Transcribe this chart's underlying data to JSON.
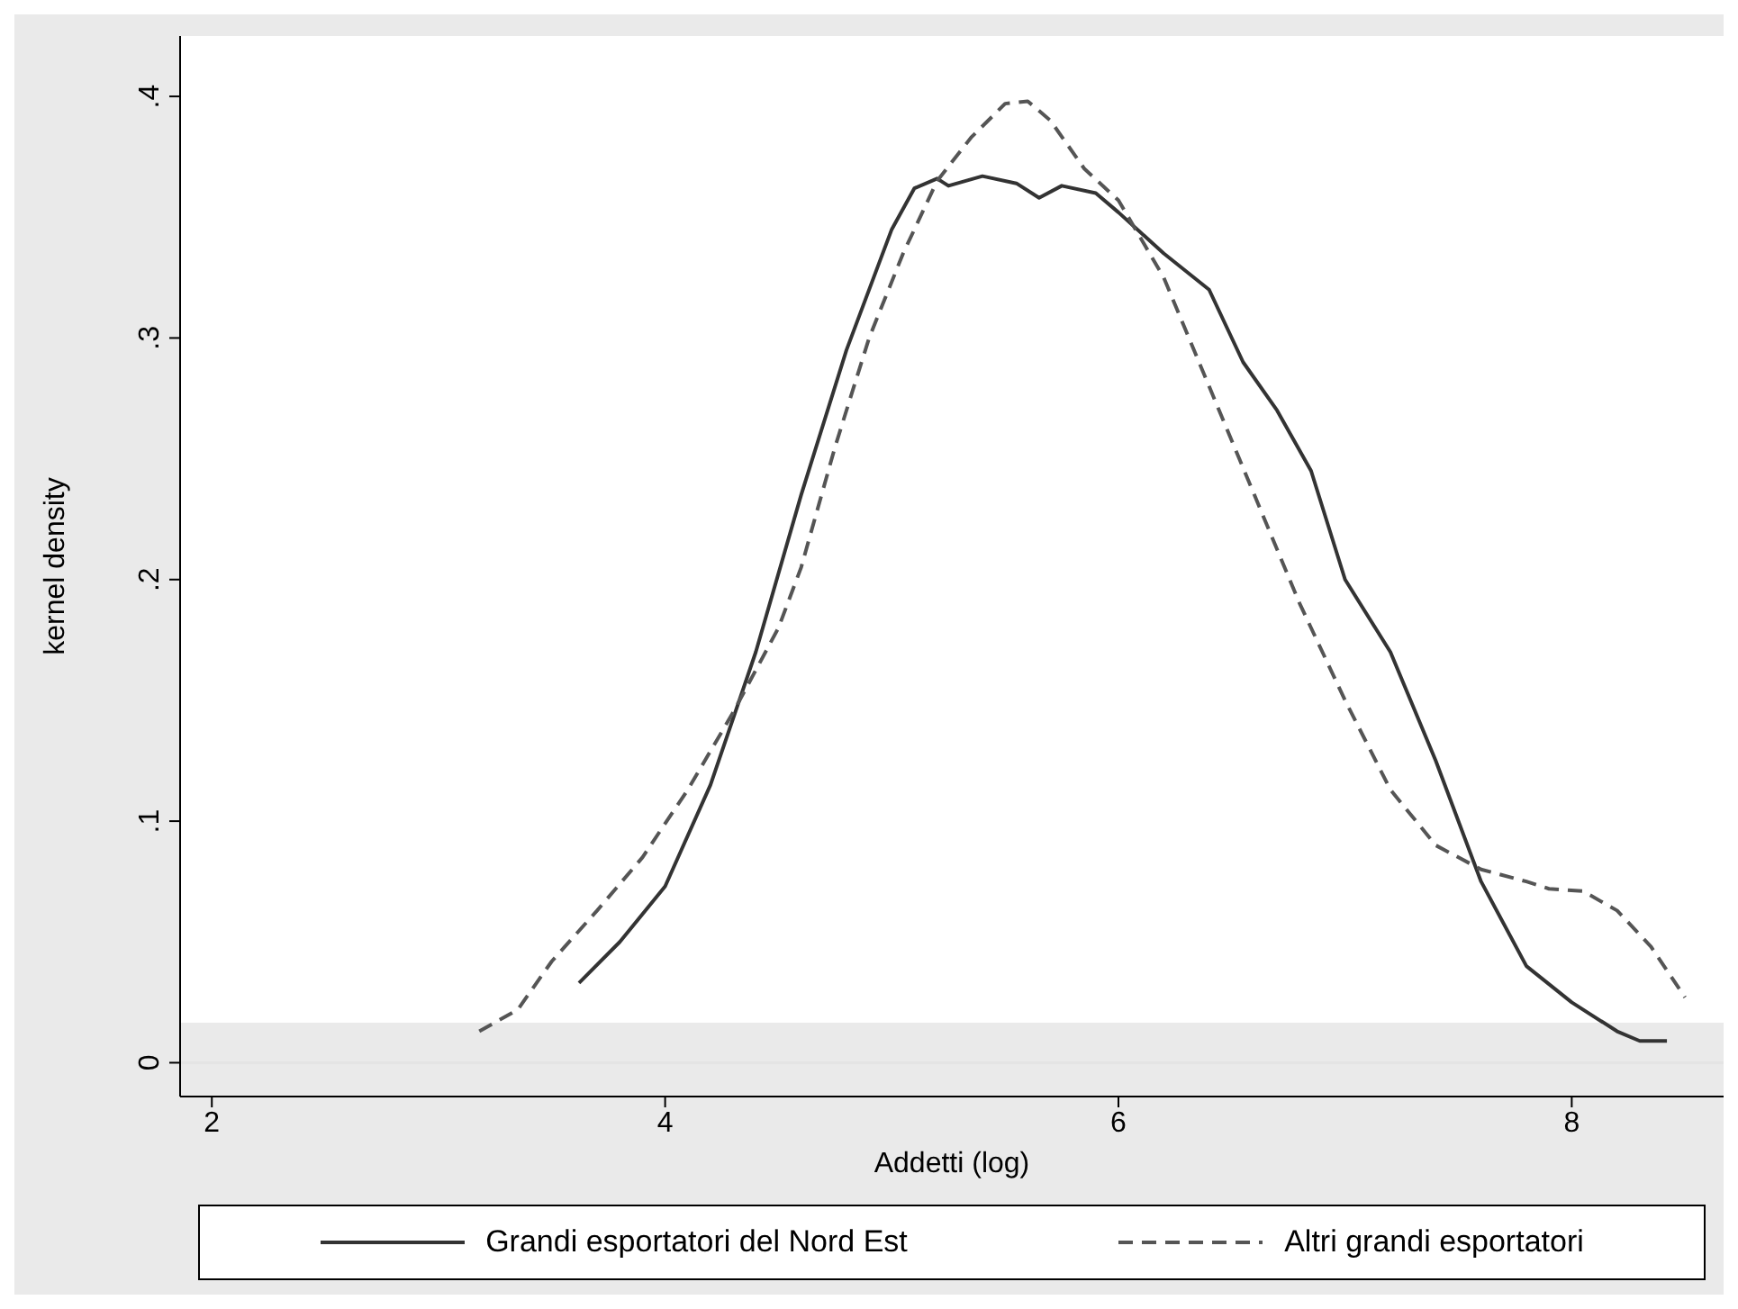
{
  "chart_data": {
    "type": "line",
    "xlabel": "Addetti (log)",
    "ylabel": "kernel density",
    "xlim": [
      1.86,
      8.67
    ],
    "ylim": [
      -0.014,
      0.425
    ],
    "xticks": [
      2,
      4,
      6,
      8
    ],
    "yticks": [
      {
        "value": 0,
        "label": "0"
      },
      {
        "value": 0.1,
        "label": ".1"
      },
      {
        "value": 0.2,
        "label": ".2"
      },
      {
        "value": 0.3,
        "label": ".3"
      },
      {
        "value": 0.4,
        "label": ".4"
      }
    ],
    "grid": "y",
    "legend": "bottom",
    "marker": "none",
    "series": [
      {
        "name": "Grandi esportatori del Nord Est",
        "color": "#333333",
        "line_style": "solid",
        "x": [
          3.62,
          3.8,
          4.0,
          4.2,
          4.4,
          4.6,
          4.8,
          5.0,
          5.1,
          5.2,
          5.25,
          5.4,
          5.55,
          5.65,
          5.75,
          5.9,
          6.0,
          6.2,
          6.4,
          6.55,
          6.7,
          6.85,
          7.0,
          7.2,
          7.4,
          7.6,
          7.8,
          8.0,
          8.2,
          8.3,
          8.42
        ],
        "values": [
          0.033,
          0.05,
          0.073,
          0.115,
          0.17,
          0.235,
          0.295,
          0.345,
          0.362,
          0.366,
          0.363,
          0.367,
          0.364,
          0.358,
          0.363,
          0.36,
          0.352,
          0.335,
          0.32,
          0.29,
          0.27,
          0.245,
          0.2,
          0.17,
          0.125,
          0.075,
          0.04,
          0.025,
          0.013,
          0.009,
          0.009
        ]
      },
      {
        "name": "Altri grandi esportatori",
        "color": "#555555",
        "line_style": "dashed",
        "x": [
          3.18,
          3.35,
          3.5,
          3.7,
          3.9,
          4.1,
          4.3,
          4.5,
          4.6,
          4.75,
          4.9,
          5.05,
          5.2,
          5.35,
          5.5,
          5.6,
          5.7,
          5.85,
          6.0,
          6.2,
          6.4,
          6.6,
          6.8,
          7.0,
          7.2,
          7.4,
          7.6,
          7.8,
          7.9,
          8.05,
          8.2,
          8.35,
          8.5
        ],
        "values": [
          0.013,
          0.022,
          0.042,
          0.063,
          0.085,
          0.113,
          0.145,
          0.18,
          0.205,
          0.255,
          0.3,
          0.335,
          0.365,
          0.383,
          0.397,
          0.398,
          0.39,
          0.37,
          0.357,
          0.325,
          0.28,
          0.235,
          0.19,
          0.15,
          0.113,
          0.09,
          0.08,
          0.075,
          0.072,
          0.071,
          0.063,
          0.048,
          0.027
        ]
      }
    ]
  }
}
